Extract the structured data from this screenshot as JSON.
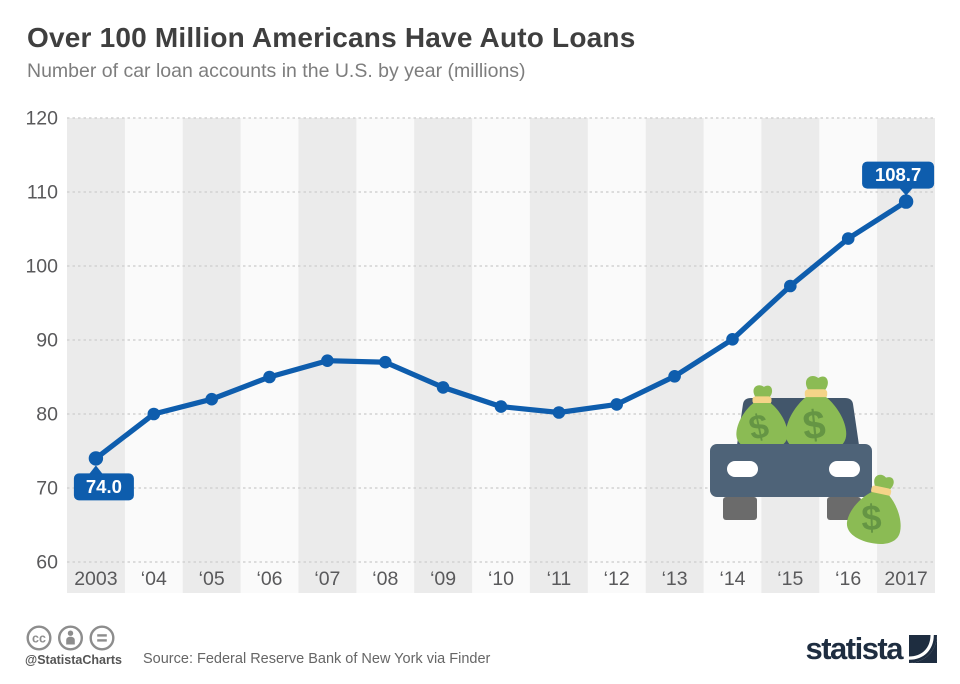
{
  "chart_data": {
    "type": "line",
    "title": "Over 100 Million Americans Have Auto Loans",
    "subtitle": "Number of car loan accounts in the U.S. by year (millions)",
    "xlabel": "",
    "ylabel": "",
    "years": [
      2003,
      2004,
      2005,
      2006,
      2007,
      2008,
      2009,
      2010,
      2011,
      2012,
      2013,
      2014,
      2015,
      2016,
      2017
    ],
    "x_tick_labels": [
      "2003",
      "‘04",
      "‘05",
      "‘06",
      "‘07",
      "‘08",
      "‘09",
      "‘10",
      "‘11",
      "‘12",
      "‘13",
      "‘14",
      "‘15",
      "‘16",
      "2017"
    ],
    "series": [
      {
        "name": "Car loan accounts (millions)",
        "values": [
          74.0,
          80.0,
          82.0,
          85.0,
          87.2,
          87.0,
          83.6,
          81.0,
          80.2,
          81.3,
          85.1,
          90.1,
          97.3,
          103.7,
          108.7
        ]
      }
    ],
    "ylim": [
      60,
      120
    ],
    "y_ticks": [
      60,
      70,
      80,
      90,
      100,
      110,
      120
    ],
    "grid": "horizontal-dotted",
    "legend": "none",
    "annotations": [
      {
        "index": 0,
        "label": "74.0",
        "position": "below"
      },
      {
        "index": 14,
        "label": "108.7",
        "position": "above"
      }
    ]
  },
  "style": {
    "line_color": "#0e5dad",
    "band_color": "#ebebeb",
    "plot_bg_color": "#fafafa",
    "grid_color": "#d2d2d2",
    "axis_text_color": "#59595b",
    "badge_text_color": "#ffffff",
    "title_color": "#3f3f3f",
    "subtitle_color": "#7d7d7d"
  },
  "illustration": {
    "name": "car-with-money-bags",
    "currency_symbol": "$",
    "colors": {
      "car_body": "#4e6378",
      "car_top": "#42566b",
      "wheel": "#6b6b6b",
      "bag": "#8bbb54",
      "dollar": "#659544",
      "tie": "#f5d488",
      "headlight": "#ffffff"
    }
  },
  "footer": {
    "handle": "@StatistaCharts",
    "source": "Source: Federal Reserve Bank of New York via Finder",
    "logo_text": "statista",
    "license": {
      "cc_label": "cc",
      "icon_color": "#8d8d8d"
    }
  }
}
